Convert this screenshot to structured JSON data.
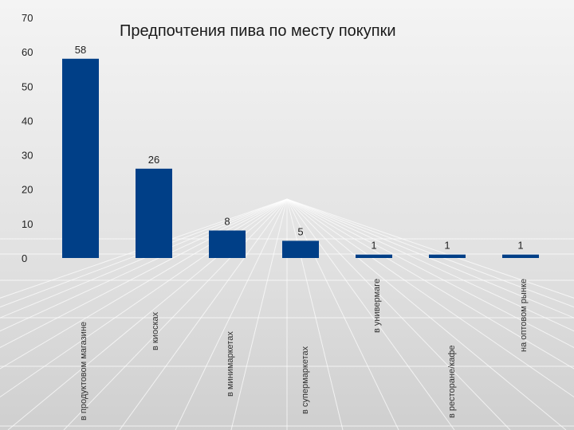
{
  "chart_data": {
    "type": "bar",
    "title": "Предпочтения пива по месту покупки",
    "xlabel": "",
    "ylabel": "",
    "ylim": [
      0,
      70
    ],
    "yticks": [
      0,
      10,
      20,
      30,
      40,
      50,
      60,
      70
    ],
    "categories": [
      "в продуктовом магазине",
      "в киосках",
      "в минимаркетах",
      "в супермаркетах",
      "в универмаге",
      "в ресторане/кафе",
      "на оптовом рынке"
    ],
    "values": [
      58,
      26,
      8,
      5,
      1,
      1,
      1
    ],
    "bar_color": "#003f87",
    "grid": false,
    "legend": "none"
  }
}
